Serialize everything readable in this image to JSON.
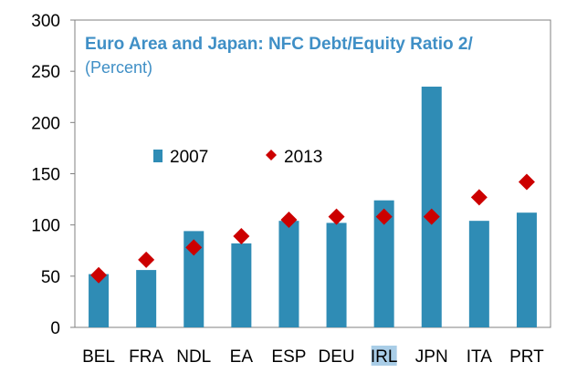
{
  "colors": {
    "title": "#3f8fc6",
    "bar": "#2f8cb5",
    "marker": "#cc0000",
    "axis": "#808080",
    "highlight": "#a9cde7"
  },
  "chart_data": {
    "type": "bar",
    "title": "Euro Area and Japan: NFC Debt/Equity Ratio 2/",
    "subtitle": "(Percent)",
    "xlabel": "",
    "ylabel": "",
    "ylim": [
      0,
      300
    ],
    "yticks": [
      0,
      50,
      100,
      150,
      200,
      250,
      300
    ],
    "categories": [
      "BEL",
      "FRA",
      "NDL",
      "EA",
      "ESP",
      "DEU",
      "IRL",
      "JPN",
      "ITA",
      "PRT"
    ],
    "highlighted_category": "IRL",
    "legend_position": "upper-left inside plot",
    "grid": false,
    "series": [
      {
        "name": "2007",
        "mark": "bar",
        "values": [
          52,
          56,
          94,
          82,
          104,
          102,
          124,
          235,
          104,
          112
        ]
      },
      {
        "name": "2013",
        "mark": "diamond",
        "values": [
          51,
          66,
          78,
          89,
          105,
          108,
          108,
          108,
          127,
          142
        ]
      }
    ]
  }
}
